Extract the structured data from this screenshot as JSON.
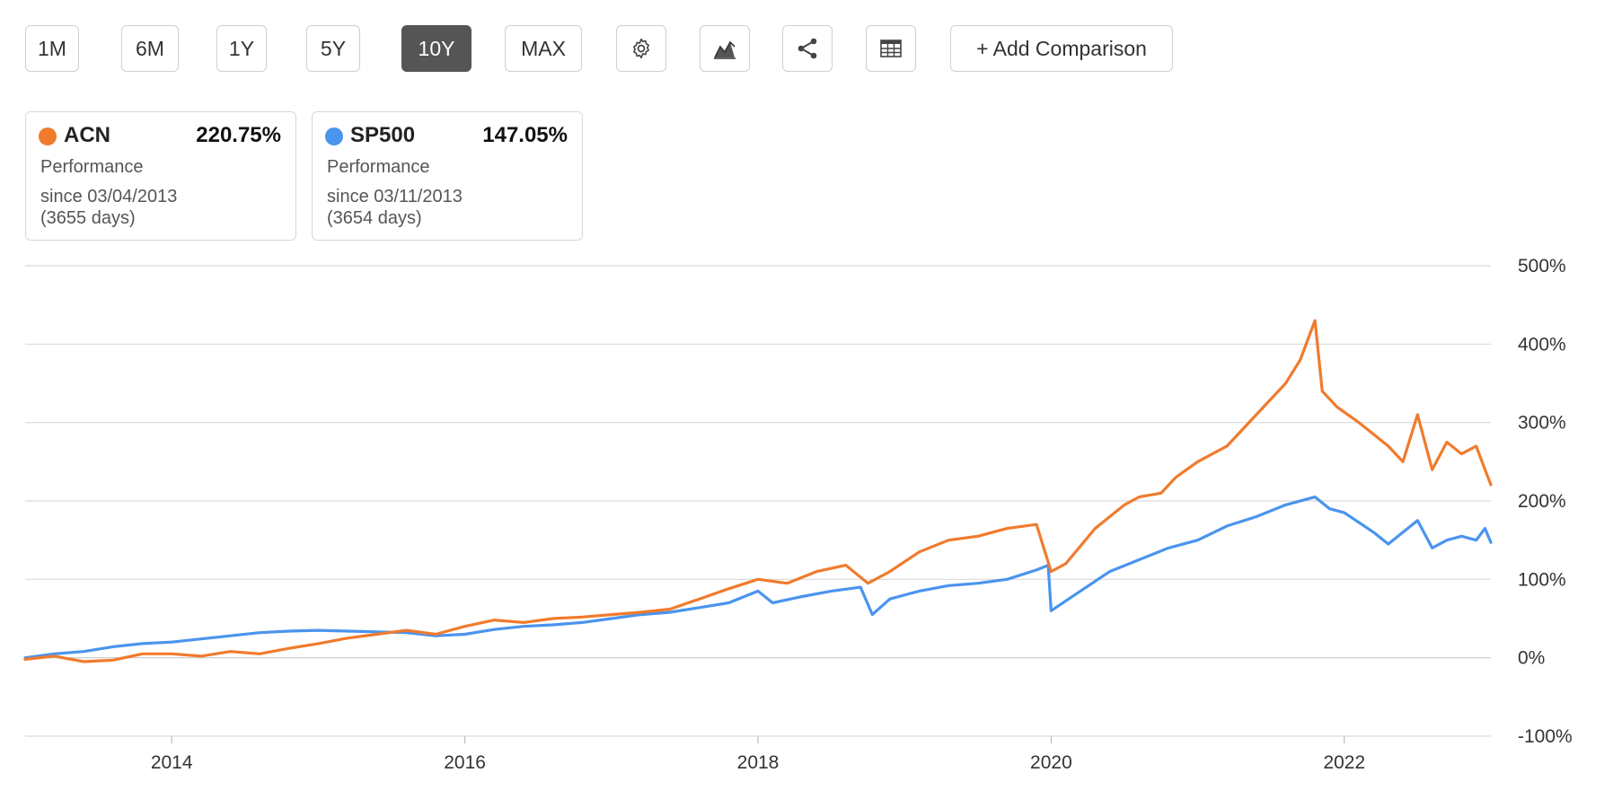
{
  "toolbar": {
    "ranges": [
      "1M",
      "6M",
      "1Y",
      "5Y",
      "10Y",
      "MAX"
    ],
    "active_range": "10Y",
    "icons": [
      "gear-icon",
      "chart-type-icon",
      "share-icon",
      "table-icon"
    ],
    "add_comparison_label": "+ Add Comparison"
  },
  "cards": [
    {
      "symbol": "ACN",
      "value": "220.75%",
      "label": "Performance",
      "since": "since 03/04/2013",
      "days": "(3655 days)",
      "color": "#f07b2d"
    },
    {
      "symbol": "SP500",
      "value": "147.05%",
      "label": "Performance",
      "since": "since 03/11/2013",
      "days": "(3654 days)",
      "color": "#4a94ee"
    }
  ],
  "chart_data": {
    "type": "line",
    "title": "",
    "xlabel": "",
    "ylabel": "",
    "ylim": [
      -100,
      500
    ],
    "xlim": [
      2013.0,
      2023.0
    ],
    "yticks": [
      -100,
      0,
      100,
      200,
      300,
      400,
      500
    ],
    "ytick_labels": [
      "-100%",
      "0%",
      "100%",
      "200%",
      "300%",
      "400%",
      "500%"
    ],
    "xticks": [
      2014,
      2016,
      2018,
      2020,
      2022
    ],
    "xtick_labels": [
      "2014",
      "2016",
      "2018",
      "2020",
      "2022"
    ],
    "grid": true,
    "series": [
      {
        "name": "ACN",
        "color": "#f07b2d",
        "x": [
          2013.0,
          2013.2,
          2013.4,
          2013.6,
          2013.8,
          2014.0,
          2014.2,
          2014.4,
          2014.6,
          2014.8,
          2015.0,
          2015.2,
          2015.4,
          2015.6,
          2015.8,
          2016.0,
          2016.2,
          2016.4,
          2016.6,
          2016.8,
          2017.0,
          2017.2,
          2017.4,
          2017.6,
          2017.8,
          2018.0,
          2018.2,
          2018.4,
          2018.6,
          2018.75,
          2018.9,
          2019.1,
          2019.3,
          2019.5,
          2019.7,
          2019.9,
          2019.95,
          2020.0,
          2020.1,
          2020.3,
          2020.5,
          2020.6,
          2020.75,
          2020.85,
          2021.0,
          2021.2,
          2021.4,
          2021.6,
          2021.7,
          2021.8,
          2021.85,
          2021.95,
          2022.1,
          2022.3,
          2022.4,
          2022.5,
          2022.6,
          2022.7,
          2022.8,
          2022.9,
          2022.96,
          2023.0
        ],
        "values": [
          -2,
          2,
          -5,
          -3,
          5,
          5,
          2,
          8,
          5,
          12,
          18,
          25,
          30,
          35,
          30,
          40,
          48,
          45,
          50,
          52,
          55,
          58,
          62,
          75,
          88,
          100,
          95,
          110,
          118,
          95,
          110,
          135,
          150,
          155,
          165,
          170,
          140,
          110,
          120,
          165,
          195,
          205,
          210,
          230,
          250,
          270,
          310,
          350,
          380,
          430,
          340,
          320,
          300,
          270,
          250,
          310,
          240,
          275,
          260,
          270,
          240,
          220.75
        ]
      },
      {
        "name": "SP500",
        "color": "#4a94ee",
        "x": [
          2013.0,
          2013.2,
          2013.4,
          2013.6,
          2013.8,
          2014.0,
          2014.2,
          2014.4,
          2014.6,
          2014.8,
          2015.0,
          2015.2,
          2015.4,
          2015.6,
          2015.8,
          2016.0,
          2016.2,
          2016.4,
          2016.6,
          2016.8,
          2017.0,
          2017.2,
          2017.4,
          2017.6,
          2017.8,
          2018.0,
          2018.1,
          2018.3,
          2018.5,
          2018.7,
          2018.78,
          2018.9,
          2019.1,
          2019.3,
          2019.5,
          2019.7,
          2019.9,
          2019.98,
          2020.0,
          2020.2,
          2020.4,
          2020.6,
          2020.8,
          2021.0,
          2021.2,
          2021.4,
          2021.6,
          2021.8,
          2021.9,
          2022.0,
          2022.2,
          2022.3,
          2022.4,
          2022.5,
          2022.6,
          2022.7,
          2022.8,
          2022.9,
          2022.96,
          2023.0
        ],
        "values": [
          0,
          5,
          8,
          14,
          18,
          20,
          24,
          28,
          32,
          34,
          35,
          34,
          33,
          32,
          28,
          30,
          36,
          40,
          42,
          45,
          50,
          55,
          58,
          64,
          70,
          85,
          70,
          78,
          85,
          90,
          55,
          75,
          85,
          92,
          95,
          100,
          112,
          118,
          60,
          85,
          110,
          125,
          140,
          150,
          168,
          180,
          195,
          205,
          190,
          185,
          160,
          145,
          160,
          175,
          140,
          150,
          155,
          150,
          165,
          147.05
        ]
      }
    ]
  }
}
